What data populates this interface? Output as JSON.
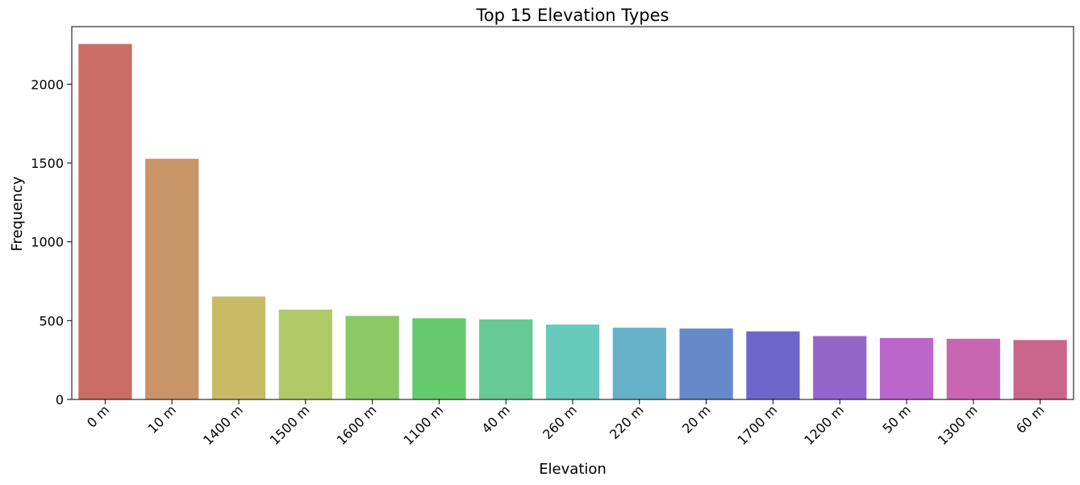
{
  "chart_data": {
    "type": "bar",
    "title": "Top 15 Elevation Types",
    "xlabel": "Elevation",
    "ylabel": "Frequency",
    "categories": [
      "0 m",
      "10 m",
      "1400 m",
      "1500 m",
      "1600 m",
      "1100 m",
      "40 m",
      "260 m",
      "220 m",
      "20 m",
      "1700 m",
      "1200 m",
      "50 m",
      "1300 m",
      "60 m"
    ],
    "values": [
      2255,
      1527,
      653,
      570,
      530,
      515,
      508,
      475,
      455,
      450,
      432,
      402,
      390,
      385,
      377
    ],
    "colors": [
      "#c96d66",
      "#c99467",
      "#c9bb66",
      "#b1c966",
      "#8ac966",
      "#66c96c",
      "#66c994",
      "#66c9bb",
      "#66b1c9",
      "#668ac9",
      "#6e66c9",
      "#9466c9",
      "#bb66c9",
      "#c966b1",
      "#c9668a"
    ],
    "yticks": [
      0,
      500,
      1000,
      1500,
      2000
    ],
    "ylim": [
      0,
      2365
    ],
    "grid": false,
    "xtick_rotation": 45
  }
}
